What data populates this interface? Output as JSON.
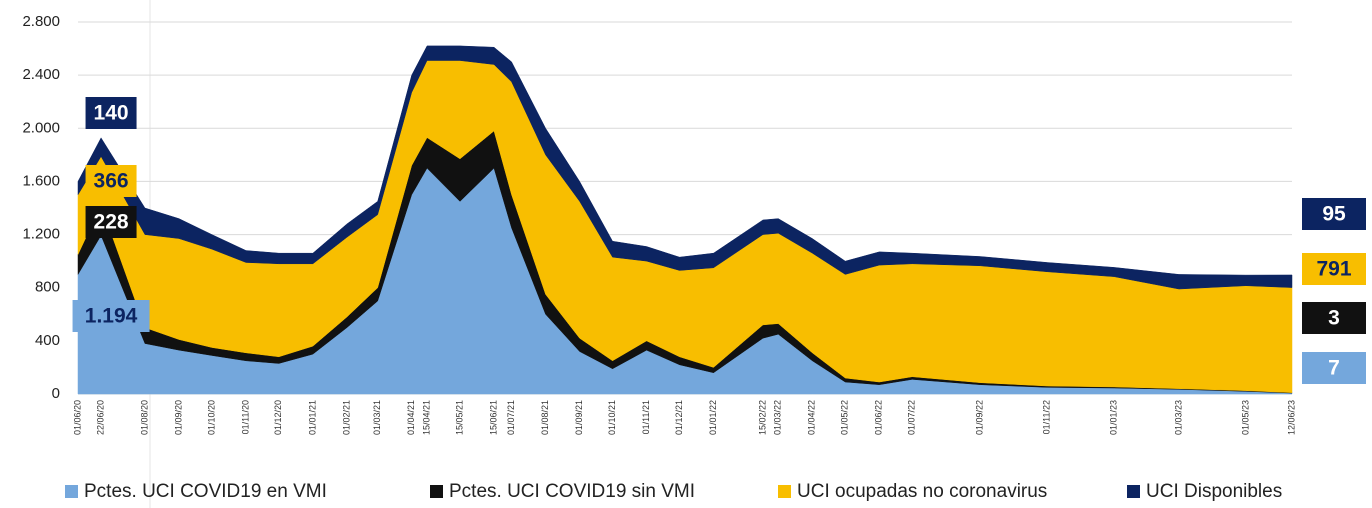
{
  "chart_data": {
    "type": "stacked-area",
    "x": [
      "01/06/20",
      "22/06/20",
      "01/08/20",
      "01/09/20",
      "01/10/20",
      "01/11/20",
      "01/12/20",
      "01/01/21",
      "01/02/21",
      "01/03/21",
      "01/04/21",
      "15/04/21",
      "15/05/21",
      "15/06/21",
      "01/07/21",
      "01/08/21",
      "01/09/21",
      "01/10/21",
      "01/11/21",
      "01/12/21",
      "01/01/22",
      "15/02/22",
      "01/03/22",
      "01/04/22",
      "01/05/22",
      "01/06/22",
      "01/07/22",
      "01/09/22",
      "01/11/22",
      "01/01/23",
      "01/03/23",
      "01/05/23",
      "12/06/23"
    ],
    "series": [
      {
        "name": "Pctes. UCI COVID19 en VMI",
        "color": "#74a7dc",
        "values": [
          900,
          1194,
          380,
          330,
          290,
          250,
          230,
          300,
          500,
          700,
          1500,
          1700,
          1450,
          1700,
          1250,
          600,
          320,
          190,
          330,
          220,
          160,
          420,
          450,
          250,
          90,
          70,
          110,
          70,
          50,
          45,
          35,
          20,
          7
        ],
        "value_labels": [
          null,
          "1.194",
          null,
          null,
          null,
          null,
          null,
          null,
          null,
          null,
          null,
          null,
          null,
          null,
          null,
          null,
          null,
          null,
          null,
          null,
          null,
          null,
          null,
          null,
          null,
          null,
          null,
          null,
          null,
          null,
          null,
          null,
          "7"
        ]
      },
      {
        "name": "Pctes. UCI COVID19 sin VMI",
        "color": "#111111",
        "values": [
          150,
          228,
          120,
          80,
          60,
          60,
          50,
          60,
          80,
          100,
          220,
          230,
          320,
          280,
          250,
          150,
          100,
          60,
          70,
          60,
          40,
          100,
          80,
          60,
          30,
          20,
          20,
          15,
          10,
          8,
          5,
          5,
          3
        ],
        "value_labels": [
          null,
          "228",
          null,
          null,
          null,
          null,
          null,
          null,
          null,
          null,
          null,
          null,
          null,
          null,
          null,
          null,
          null,
          null,
          null,
          null,
          null,
          null,
          null,
          null,
          null,
          null,
          null,
          null,
          null,
          null,
          null,
          null,
          "3"
        ]
      },
      {
        "name": "UCI ocupadas no coronavirus",
        "color": "#f8be00",
        "values": [
          450,
          366,
          700,
          760,
          740,
          680,
          700,
          620,
          600,
          550,
          550,
          580,
          740,
          500,
          850,
          1050,
          1030,
          780,
          600,
          650,
          750,
          680,
          680,
          750,
          780,
          880,
          850,
          880,
          860,
          830,
          750,
          790,
          791
        ],
        "value_labels": [
          null,
          "366",
          null,
          null,
          null,
          null,
          null,
          null,
          null,
          null,
          null,
          null,
          null,
          null,
          null,
          null,
          null,
          null,
          null,
          null,
          null,
          null,
          null,
          null,
          null,
          null,
          null,
          null,
          null,
          null,
          null,
          null,
          "791"
        ]
      },
      {
        "name": "UCI Disponibles",
        "color": "#0c2461",
        "values": [
          100,
          140,
          200,
          150,
          110,
          90,
          80,
          80,
          100,
          100,
          130,
          110,
          110,
          130,
          150,
          200,
          150,
          120,
          110,
          100,
          110,
          110,
          110,
          110,
          100,
          100,
          80,
          70,
          70,
          70,
          110,
          80,
          95
        ],
        "value_labels": [
          null,
          "140",
          null,
          null,
          null,
          null,
          null,
          null,
          null,
          null,
          null,
          null,
          null,
          null,
          null,
          null,
          null,
          null,
          null,
          null,
          null,
          null,
          null,
          null,
          null,
          null,
          null,
          null,
          null,
          null,
          null,
          null,
          "95"
        ]
      }
    ],
    "ylim": [
      0,
      2800
    ],
    "yticks": [
      0,
      400,
      800,
      {
        "value": 1200,
        "label": "1.200"
      },
      {
        "value": 1600,
        "label": "1.600"
      },
      {
        "value": 2000,
        "label": "2.000"
      },
      {
        "value": 2400,
        "label": "2.400"
      },
      {
        "value": 2800,
        "label": "2.800"
      }
    ],
    "grid": true
  }
}
